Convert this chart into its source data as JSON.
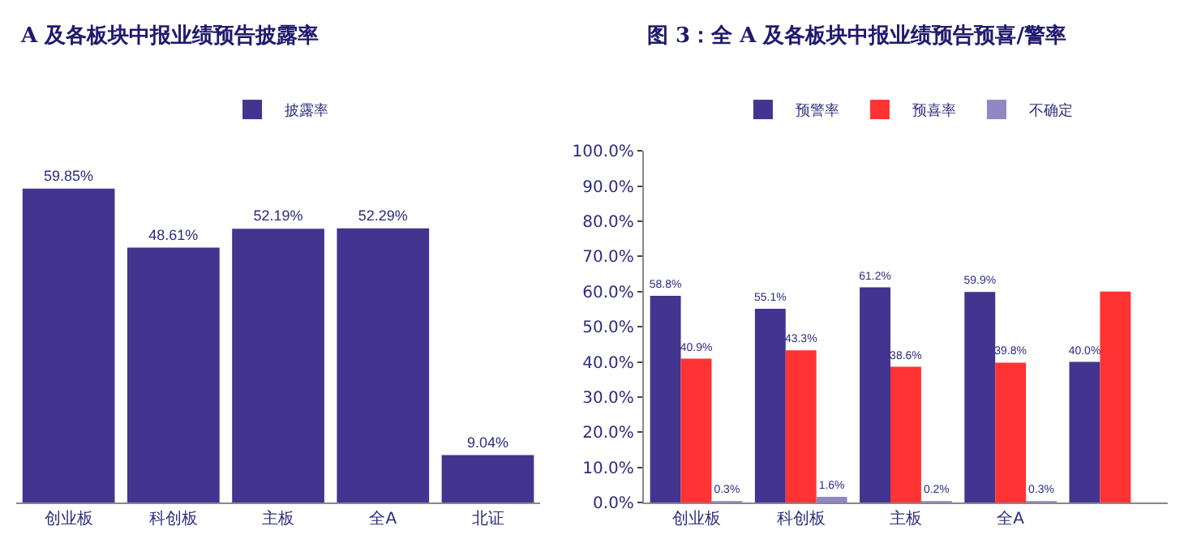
{
  "chart_data": [
    {
      "type": "bar",
      "title": "A 及各板块中报业绩预告披露率",
      "categories": [
        "创业板",
        "科创板",
        "主板",
        "全A",
        "北证"
      ],
      "legend": "top",
      "tick_labels": "x",
      "series": [
        {
          "name": "披露率",
          "color": "#433490",
          "values": [
            59.85,
            48.61,
            52.19,
            52.29,
            9.04
          ],
          "value_labels": [
            "59.85%",
            "48.61%",
            "52.19%",
            "52.29%",
            "9.04%"
          ]
        }
      ]
    },
    {
      "type": "bar",
      "title": "图 3：全 A 及各板块中报业绩预告预喜/警率",
      "categories": [
        "创业板",
        "科创板",
        "主板",
        "全A",
        null
      ],
      "legend": "top",
      "ylim": [
        0,
        100
      ],
      "yticks": [
        {
          "value": 0,
          "label": "0.0%"
        },
        {
          "value": 10,
          "label": "10.0%"
        },
        {
          "value": 20,
          "label": "20.0%"
        },
        {
          "value": 30,
          "label": "30.0%"
        },
        {
          "value": 40,
          "label": "40.0%"
        },
        {
          "value": 50,
          "label": "50.0%"
        },
        {
          "value": 60,
          "label": "60.0%"
        },
        {
          "value": 70,
          "label": "70.0%"
        },
        {
          "value": 80,
          "label": "80.0%"
        },
        {
          "value": 90,
          "label": "90.0%"
        },
        {
          "value": 100,
          "label": "100.0%"
        }
      ],
      "series": [
        {
          "name": "预警率",
          "color": "#433490",
          "values": [
            58.8,
            55.1,
            61.2,
            59.9,
            40.0
          ],
          "value_labels": [
            "58.8%",
            "55.1%",
            "61.2%",
            "59.9%",
            "40.0%"
          ]
        },
        {
          "name": "预喜率",
          "color": "#ff3333",
          "values": [
            40.9,
            43.3,
            38.6,
            39.8,
            60.0
          ],
          "value_labels": [
            "40.9%",
            "43.3%",
            "38.6%",
            "39.8%",
            null
          ]
        },
        {
          "name": "不确定",
          "color": "#9088c4",
          "values": [
            0.3,
            1.6,
            0.2,
            0.3,
            null
          ],
          "value_labels": [
            "0.3%",
            "1.6%",
            "0.2%",
            "0.3%",
            null
          ]
        }
      ]
    }
  ]
}
